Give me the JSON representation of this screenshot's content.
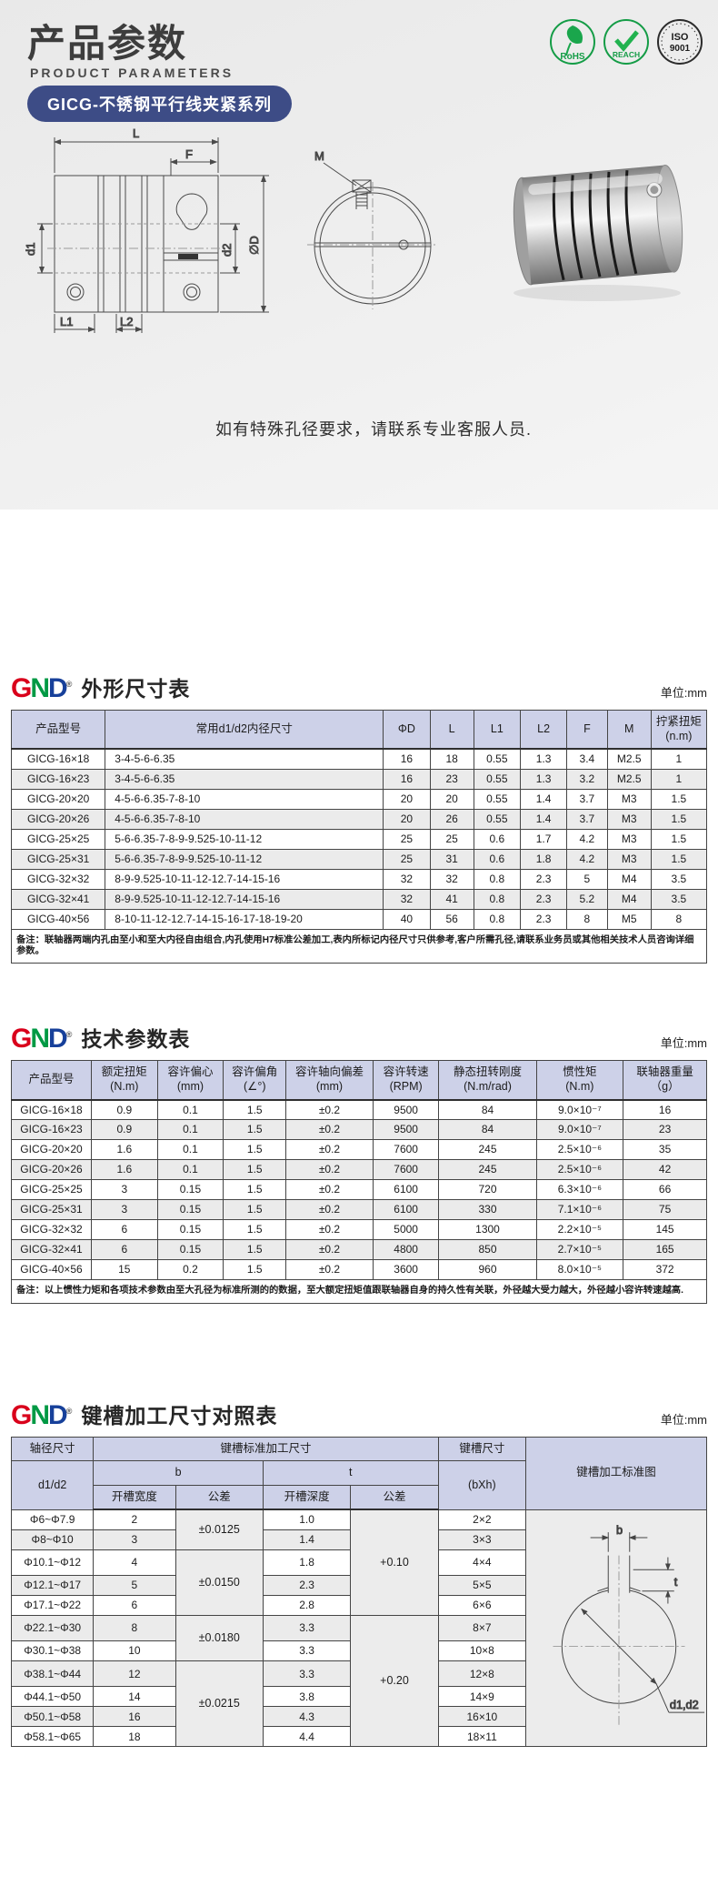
{
  "page": {
    "title": "产品参数",
    "subtitle": "PRODUCT   PARAMETERS",
    "series_badge": "GICG-不锈钢平行线夹紧系列",
    "notice": "如有特殊孔径要求，请联系专业客服人员."
  },
  "brand": {
    "g": "G",
    "n": "N",
    "d": "D",
    "reg": "®"
  },
  "certs": [
    {
      "label": "RoHS"
    },
    {
      "label": "REACH"
    },
    {
      "label1": "ISO",
      "label2": "9001"
    }
  ],
  "drawing": {
    "side_labels": {
      "L": "L",
      "F": "F",
      "d1": "d1",
      "d2": "d2",
      "D": "∅D",
      "L1": "L1",
      "L2": "L2"
    },
    "front_label_M": "M"
  },
  "dimension_table": {
    "title": "外形尺寸表",
    "unit": "单位:mm",
    "header": [
      [
        "产品型号",
        "常用d1/d2内径尺寸",
        "ΦD",
        "L",
        "L1",
        "L2",
        "F",
        "M",
        "拧紧扭矩\n(n.m)"
      ]
    ],
    "rows": [
      [
        "GICG-16×18",
        "3-4-5-6-6.35",
        "16",
        "18",
        "0.55",
        "1.3",
        "3.4",
        "M2.5",
        "1"
      ],
      [
        "GICG-16×23",
        "3-4-5-6-6.35",
        "16",
        "23",
        "0.55",
        "1.3",
        "3.2",
        "M2.5",
        "1"
      ],
      [
        "GICG-20×20",
        "4-5-6-6.35-7-8-10",
        "20",
        "20",
        "0.55",
        "1.4",
        "3.7",
        "M3",
        "1.5"
      ],
      [
        "GICG-20×26",
        "4-5-6-6.35-7-8-10",
        "20",
        "26",
        "0.55",
        "1.4",
        "3.7",
        "M3",
        "1.5"
      ],
      [
        "GICG-25×25",
        "5-6-6.35-7-8-9-9.525-10-11-12",
        "25",
        "25",
        "0.6",
        "1.7",
        "4.2",
        "M3",
        "1.5"
      ],
      [
        "GICG-25×31",
        "5-6-6.35-7-8-9-9.525-10-11-12",
        "25",
        "31",
        "0.6",
        "1.8",
        "4.2",
        "M3",
        "1.5"
      ],
      [
        "GICG-32×32",
        "8-9-9.525-10-11-12-12.7-14-15-16",
        "32",
        "32",
        "0.8",
        "2.3",
        "5",
        "M4",
        "3.5"
      ],
      [
        "GICG-32×41",
        "8-9-9.525-10-11-12-12.7-14-15-16",
        "32",
        "41",
        "0.8",
        "2.3",
        "5.2",
        "M4",
        "3.5"
      ],
      [
        "GICG-40×56",
        "8-10-11-12-12.7-14-15-16-17-18-19-20",
        "40",
        "56",
        "0.8",
        "2.3",
        "8",
        "M5",
        "8"
      ]
    ],
    "note": "备注：联轴器两端内孔由至小和至大内径自由组合,内孔使用H7标准公差加工,表内所标记内径尺寸只供参考,客户所需孔径,请联系业务员或其他相关技术人员咨询详细参数。"
  },
  "tech_table": {
    "title": "技术参数表",
    "unit": "单位:mm",
    "header": [
      [
        "产品型号",
        "额定扭矩\n(N.m)",
        "容许偏心\n(mm)",
        "容许偏角\n(∠°)",
        "容许轴向偏差\n(mm)",
        "容许转速\n(RPM)",
        "静态扭转刚度\n(N.m/rad)",
        "惯性矩\n(N.m)",
        "联轴器重量\n（g）"
      ]
    ],
    "rows": [
      [
        "GICG-16×18",
        "0.9",
        "0.1",
        "1.5",
        "±0.2",
        "9500",
        "84",
        "9.0×10⁻⁷",
        "16"
      ],
      [
        "GICG-16×23",
        "0.9",
        "0.1",
        "1.5",
        "±0.2",
        "9500",
        "84",
        "9.0×10⁻⁷",
        "23"
      ],
      [
        "GICG-20×20",
        "1.6",
        "0.1",
        "1.5",
        "±0.2",
        "7600",
        "245",
        "2.5×10⁻⁶",
        "35"
      ],
      [
        "GICG-20×26",
        "1.6",
        "0.1",
        "1.5",
        "±0.2",
        "7600",
        "245",
        "2.5×10⁻⁶",
        "42"
      ],
      [
        "GICG-25×25",
        "3",
        "0.15",
        "1.5",
        "±0.2",
        "6100",
        "720",
        "6.3×10⁻⁶",
        "66"
      ],
      [
        "GICG-25×31",
        "3",
        "0.15",
        "1.5",
        "±0.2",
        "6100",
        "330",
        "7.1×10⁻⁶",
        "75"
      ],
      [
        "GICG-32×32",
        "6",
        "0.15",
        "1.5",
        "±0.2",
        "5000",
        "1300",
        "2.2×10⁻⁵",
        "145"
      ],
      [
        "GICG-32×41",
        "6",
        "0.15",
        "1.5",
        "±0.2",
        "4800",
        "850",
        "2.7×10⁻⁵",
        "165"
      ],
      [
        "GICG-40×56",
        "15",
        "0.2",
        "1.5",
        "±0.2",
        "3600",
        "960",
        "8.0×10⁻⁵",
        "372"
      ]
    ],
    "note": "备注：以上惯性力矩和各项技术参数由至大孔径为标准所测的的数据，至大额定扭矩值跟联轴器自身的持久性有关联，外径越大受力越大，外径越小容许转速越高."
  },
  "keyway_table": {
    "title": "键槽加工尺寸对照表",
    "unit": "单位:mm",
    "header": [
      [
        {
          "t": "轴径尺寸"
        },
        {
          "t": "键槽标准加工尺寸",
          "cs": 4
        },
        {
          "t": "键槽尺寸"
        },
        {
          "t": "键槽加工标准图",
          "rs": 3
        }
      ],
      [
        {
          "t": "d1/d2",
          "rs": 2
        },
        {
          "t": "b",
          "cs": 2
        },
        {
          "t": "t",
          "cs": 2
        },
        {
          "t": "(bXh)",
          "rs": 2
        }
      ],
      [
        {
          "t": "开槽宽度"
        },
        {
          "t": "公差"
        },
        {
          "t": "开槽深度"
        },
        {
          "t": "公差"
        }
      ]
    ],
    "rows": [
      [
        "Φ6~Φ7.9",
        "2",
        {
          "t": "±0.0125",
          "rs": 2,
          "cls": "tol"
        },
        "1.0",
        {
          "t": "+0.10",
          "rs": 5,
          "cls": "tol"
        },
        "2×2",
        {
          "tpl": "tpl-keyway-diagram",
          "rs": 11,
          "cls": "diagram-cell",
          "name": "keyway-diagram-cell"
        }
      ],
      [
        "Φ8~Φ10",
        "3",
        "1.4",
        "3×3"
      ],
      [
        "Φ10.1~Φ12",
        "4",
        {
          "t": "±0.0150",
          "rs": 3,
          "cls": "tol"
        },
        "1.8",
        "4×4"
      ],
      [
        "Φ12.1~Φ17",
        "5",
        "2.3",
        "5×5"
      ],
      [
        "Φ17.1~Φ22",
        "6",
        "2.8",
        "6×6"
      ],
      [
        "Φ22.1~Φ30",
        "8",
        {
          "t": "±0.0180",
          "rs": 2,
          "cls": "tol"
        },
        "3.3",
        {
          "t": "+0.20",
          "rs": 6,
          "cls": "tol"
        },
        "8×7"
      ],
      [
        "Φ30.1~Φ38",
        "10",
        "3.3",
        "10×8"
      ],
      [
        "Φ38.1~Φ44",
        "12",
        {
          "t": "±0.0215",
          "rs": 4,
          "cls": "tol"
        },
        "3.3",
        "12×8"
      ],
      [
        "Φ44.1~Φ50",
        "14",
        "3.8",
        "14×9"
      ],
      [
        "Φ50.1~Φ58",
        "16",
        "4.3",
        "16×10"
      ],
      [
        "Φ58.1~Φ65",
        "18",
        "4.4",
        "18×11"
      ]
    ],
    "diagram_labels": {
      "b": "b",
      "t": "t",
      "d": "d1,d2"
    }
  }
}
